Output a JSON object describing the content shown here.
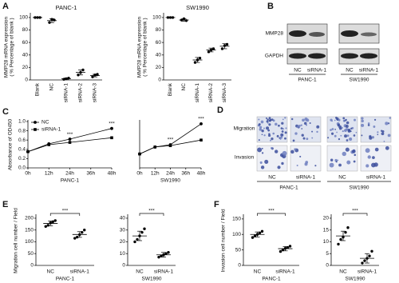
{
  "panel_labels": [
    "A",
    "B",
    "C",
    "D",
    "E",
    "F"
  ],
  "blot": {
    "rows": [
      "MMP28",
      "GAPDH"
    ],
    "lanes": [
      "NC",
      "siRNA-1",
      "NC",
      "siRNA-1"
    ],
    "groups": [
      "PANC-1",
      "SW1990"
    ]
  },
  "images": {
    "rows": [
      "Migration",
      "Invasion"
    ],
    "lanes": [
      "NC",
      "siRNA-1",
      "NC",
      "siRNA-1"
    ],
    "groups": [
      "PANC-1",
      "SW1990"
    ]
  },
  "chart_data": [
    {
      "type": "dotplot",
      "title": "PANC-1",
      "y_label": [
        "MMP28 mRNA expression",
        "( % Percentage of blank )"
      ],
      "color": "#000000",
      "categories": [
        "Blank",
        "NC",
        "siRNA-1",
        "siRNA-2",
        "siRNA-3"
      ],
      "values": [
        100,
        95,
        2,
        12,
        7
      ],
      "errors": [
        0,
        3,
        1,
        4,
        2
      ],
      "points": [
        [
          100,
          100,
          100
        ],
        [
          92,
          97,
          96
        ],
        [
          1,
          2,
          3
        ],
        [
          8,
          12,
          16
        ],
        [
          5,
          8,
          9
        ]
      ],
      "ylim": [
        0,
        105
      ],
      "yticks": [
        0,
        20,
        40,
        60,
        80,
        100
      ]
    },
    {
      "type": "dotplot",
      "title": "SW1990",
      "y_label": [
        "MMP28 mRNA expression",
        "( % Percentage of blank )"
      ],
      "color": "#000000",
      "categories": [
        "Blank",
        "NC",
        "siRNA-1",
        "siRNA-2",
        "siRNA-3"
      ],
      "values": [
        100,
        96,
        32,
        48,
        54
      ],
      "errors": [
        0,
        2,
        4,
        3,
        4
      ],
      "points": [
        [
          100,
          100,
          100
        ],
        [
          96,
          98,
          95
        ],
        [
          28,
          32,
          35
        ],
        [
          45,
          48,
          50
        ],
        [
          50,
          55,
          57
        ]
      ],
      "ylim": [
        0,
        105
      ],
      "yticks": [
        0,
        20,
        40,
        60,
        80,
        100
      ]
    },
    {
      "type": "line",
      "y_label": [
        "Absorbance of OD450"
      ],
      "x_label": "PANC-1",
      "legend": "upper left",
      "x": [
        0,
        12,
        24,
        48
      ],
      "xlim": [
        0,
        48
      ],
      "xticks": [
        {
          "value": 0,
          "label": "0h"
        },
        {
          "value": 12,
          "label": "12h"
        },
        {
          "value": 24,
          "label": "24h"
        },
        {
          "value": 36,
          "label": "36h"
        },
        {
          "value": 48,
          "label": "48h"
        }
      ],
      "ylim": [
        0,
        1
      ],
      "yticks": [
        {
          "value": 0,
          "label": "0.0"
        },
        0.2,
        0.4,
        0.6,
        0.8,
        {
          "value": 1,
          "label": "1.0"
        }
      ],
      "series": [
        {
          "name": "NC",
          "color": "#000000",
          "marker": "circle",
          "values": [
            0.35,
            0.52,
            0.62,
            0.85
          ]
        },
        {
          "name": "siRNA-1",
          "color": "#000000",
          "marker": "square",
          "values": [
            0.35,
            0.5,
            0.55,
            0.65
          ]
        }
      ],
      "annotations": [
        {
          "x": 24,
          "text": "***"
        },
        {
          "x": 48,
          "text": "***"
        }
      ]
    },
    {
      "type": "line",
      "x_label": "SW1990",
      "x": [
        0,
        12,
        24,
        48
      ],
      "xlim": [
        0,
        48
      ],
      "xticks": [
        {
          "value": 0,
          "label": "0h"
        },
        {
          "value": 12,
          "label": "12h"
        },
        {
          "value": 24,
          "label": "24h"
        },
        {
          "value": 36,
          "label": "36h"
        },
        {
          "value": 48,
          "label": "48h"
        }
      ],
      "ylim": [
        0,
        1
      ],
      "series": [
        {
          "name": "NC",
          "color": "#000000",
          "marker": "circle",
          "values": [
            0.3,
            0.45,
            0.5,
            0.95
          ]
        },
        {
          "name": "siRNA-1",
          "color": "#000000",
          "marker": "square",
          "values": [
            0.3,
            0.45,
            0.48,
            0.6
          ]
        }
      ],
      "annotations": [
        {
          "x": 24,
          "text": "***"
        },
        {
          "x": 48,
          "text": "***"
        }
      ]
    },
    {
      "type": "dotplot",
      "y_label": [
        "Migration cell number / Field"
      ],
      "x_label": "PANC-1",
      "color": "#000000",
      "annotation": "***",
      "categories": [
        "NC",
        "siRNA-1"
      ],
      "values": [
        178,
        131
      ],
      "errors": [
        10,
        12
      ],
      "points": [
        [
          165,
          170,
          180,
          185,
          190
        ],
        [
          115,
          120,
          130,
          140,
          150
        ]
      ],
      "ylim": [
        0,
        210
      ],
      "yticks": [
        0,
        50,
        100,
        150,
        200
      ]
    },
    {
      "type": "dotplot",
      "x_label": "SW1990",
      "color": "#000000",
      "annotation": "***",
      "categories": [
        "NC",
        "siRNA-1"
      ],
      "values": [
        25,
        9
      ],
      "errors": [
        4,
        2
      ],
      "points": [
        [
          20,
          22,
          25,
          28,
          31
        ],
        [
          7,
          8,
          9,
          10,
          11
        ]
      ],
      "ylim": [
        0,
        42
      ],
      "yticks": [
        0,
        10,
        20,
        30,
        40
      ]
    },
    {
      "type": "dotplot",
      "y_label": [
        "Invasion cell number / Field"
      ],
      "x_label": "PANC-1",
      "color": "#000000",
      "annotation": "***",
      "categories": [
        "NC",
        "siRNA-1"
      ],
      "values": [
        100,
        54
      ],
      "errors": [
        8,
        7
      ],
      "points": [
        [
          90,
          95,
          100,
          105,
          110
        ],
        [
          45,
          50,
          55,
          58,
          62
        ]
      ],
      "ylim": [
        0,
        160
      ],
      "yticks": [
        0,
        50,
        100,
        150
      ]
    },
    {
      "type": "dotplot",
      "x_label": "SW1990",
      "color": "#000000",
      "annotation": "***",
      "categories": [
        "NC",
        "siRNA-1"
      ],
      "values": [
        12.5,
        3
      ],
      "errors": [
        2,
        2
      ],
      "points": [
        [
          9,
          11,
          12,
          14,
          16
        ],
        [
          1,
          2,
          3,
          4,
          6
        ]
      ],
      "ylim": [
        0,
        21
      ],
      "yticks": [
        0,
        5,
        10,
        15,
        20
      ]
    }
  ]
}
